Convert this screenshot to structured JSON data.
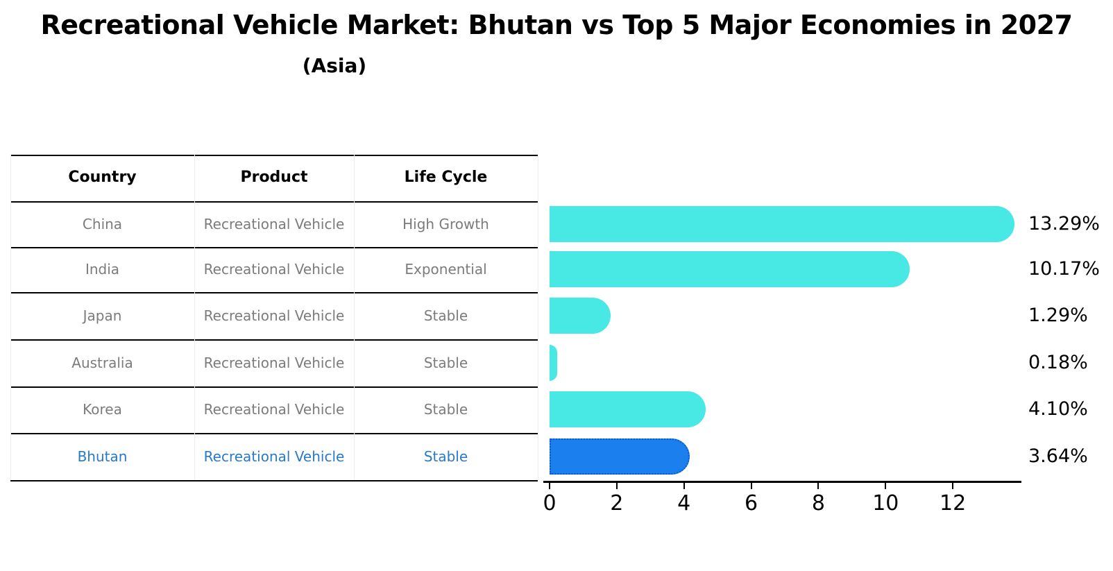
{
  "title": "Recreational Vehicle Market: Bhutan vs Top 5 Major Economies in 2027",
  "subtitle": "(Asia)",
  "table": {
    "columns": [
      "Country",
      "Product",
      "Life Cycle"
    ],
    "rows": [
      {
        "country": "China",
        "product": "Recreational Vehicle",
        "life_cycle": "High Growth",
        "highlight": false
      },
      {
        "country": "India",
        "product": "Recreational Vehicle",
        "life_cycle": "Exponential",
        "highlight": false
      },
      {
        "country": "Japan",
        "product": "Recreational Vehicle",
        "life_cycle": "Stable",
        "highlight": false
      },
      {
        "country": "Australia",
        "product": "Recreational Vehicle",
        "life_cycle": "Stable",
        "highlight": false
      },
      {
        "country": "Korea",
        "product": "Recreational Vehicle",
        "life_cycle": "Stable",
        "highlight": false
      },
      {
        "country": "Bhutan",
        "product": "Recreational Vehicle",
        "life_cycle": "Stable",
        "highlight": true
      }
    ]
  },
  "chart_data": {
    "type": "bar",
    "orientation": "horizontal",
    "title": "Recreational Vehicle Market: Bhutan vs Top 5 Major Economies in 2027",
    "subtitle": "(Asia)",
    "categories": [
      "China",
      "India",
      "Japan",
      "Australia",
      "Korea",
      "Bhutan"
    ],
    "values": [
      13.29,
      10.17,
      1.29,
      0.18,
      4.1,
      3.64
    ],
    "value_labels": [
      "13.29%",
      "10.17%",
      "1.29%",
      "0.18%",
      "4.10%",
      "3.64%"
    ],
    "x_ticks": [
      "0",
      "2",
      "4",
      "6",
      "8",
      "10",
      "12"
    ],
    "x_tick_values": [
      0,
      2,
      4,
      6,
      8,
      10,
      12
    ],
    "xlim": [
      0,
      14
    ],
    "xlabel": "",
    "ylabel": "",
    "grid": false,
    "legend": null,
    "bar_color": "#48e8e4",
    "highlight_bar_color": "#1b80ee",
    "highlight_border_color": "#0a58d0",
    "highlight_index": 5,
    "highlight_text_color": "#2879c9",
    "row_text_color": "#7b7b7b"
  }
}
